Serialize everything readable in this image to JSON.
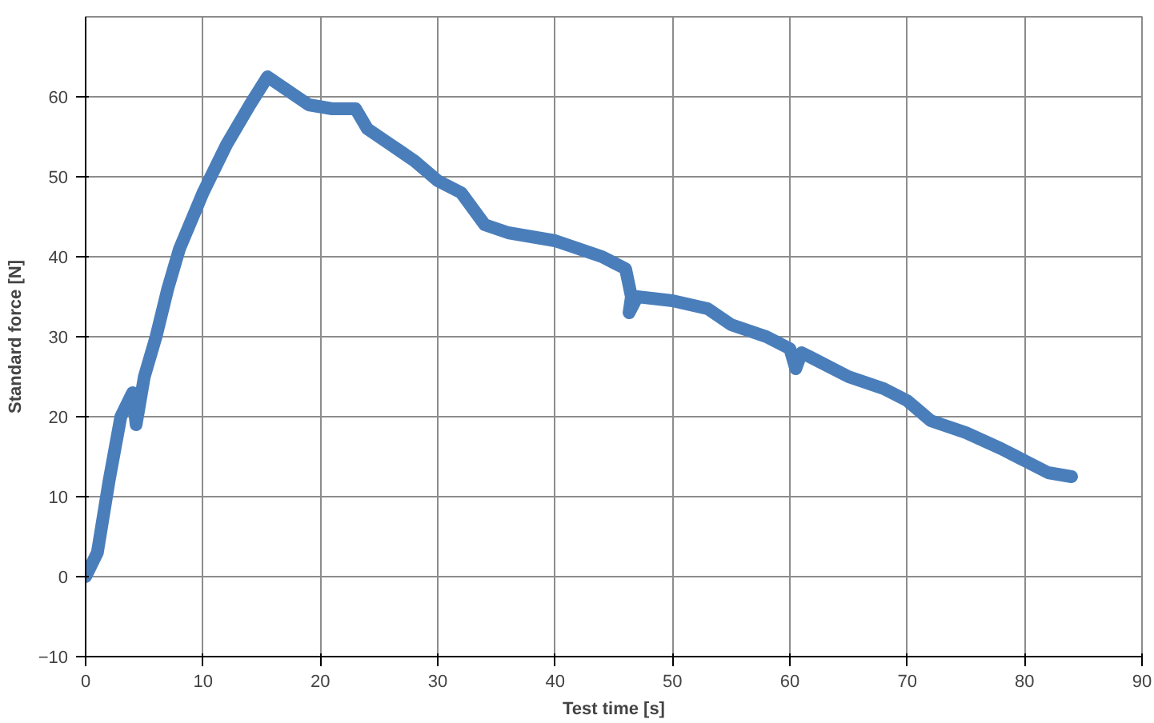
{
  "chart_data": {
    "type": "line",
    "xlabel": "Test time [s]",
    "ylabel": "Standard force [N]",
    "x": [
      0,
      1,
      2,
      3,
      4,
      4.3,
      5,
      6,
      7,
      8,
      10,
      12,
      14,
      15.5,
      17,
      19,
      21,
      23,
      24,
      26,
      28,
      30,
      32,
      34,
      36,
      40,
      44,
      46,
      46.5,
      46.3,
      47,
      50,
      53,
      55,
      58,
      60,
      60.5,
      61,
      65,
      68,
      70,
      72,
      75,
      78,
      80,
      82,
      84
    ],
    "series": [
      {
        "color": "#4a7ebb",
        "values": [
          0,
          3,
          12,
          20,
          23,
          19,
          25,
          30,
          36,
          41,
          48,
          54,
          59,
          62.5,
          61,
          59,
          58.5,
          58.5,
          56,
          54,
          52,
          49.5,
          48,
          44,
          43,
          42,
          40,
          38.5,
          35,
          33,
          35,
          34.5,
          33.5,
          31.5,
          30,
          28.5,
          26,
          28,
          25,
          23.5,
          22,
          19.5,
          18,
          16,
          14.5,
          13,
          12.5
        ]
      }
    ],
    "xlim": [
      0,
      90
    ],
    "ylim": [
      -10,
      70
    ],
    "xticks": [
      0,
      10,
      20,
      30,
      40,
      50,
      60,
      70,
      80,
      90
    ],
    "yticks": [
      -10,
      0,
      10,
      20,
      30,
      40,
      50,
      60
    ],
    "grid": true
  }
}
